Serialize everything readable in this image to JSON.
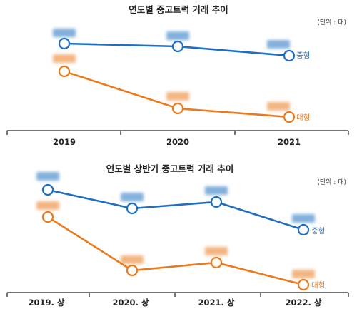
{
  "colors": {
    "mid": "#1f6fc0",
    "large": "#ea7a1e",
    "axis": "#222222"
  },
  "chart_data": [
    {
      "type": "line",
      "title": "연도별 중고트럭 거래 추이",
      "unit": "(단위 : 대)",
      "categories": [
        "2019",
        "2020",
        "2021"
      ],
      "series": [
        {
          "name": "중형",
          "values": [
            null,
            null,
            null
          ]
        },
        {
          "name": "대형",
          "values": [
            null,
            null,
            null
          ]
        }
      ],
      "grid": false,
      "legend": "series labels at line ends"
    },
    {
      "type": "line",
      "title": "연도별 상반기 중고트럭 거래 추이",
      "unit": "(단위 : 대)",
      "categories": [
        "2019. 상",
        "2020. 상",
        "2021. 상",
        "2022. 상"
      ],
      "series": [
        {
          "name": "중형",
          "values": [
            null,
            null,
            null,
            null
          ]
        },
        {
          "name": "대형",
          "values": [
            null,
            null,
            null,
            null
          ]
        }
      ],
      "grid": false,
      "legend": "series labels at line ends"
    }
  ]
}
